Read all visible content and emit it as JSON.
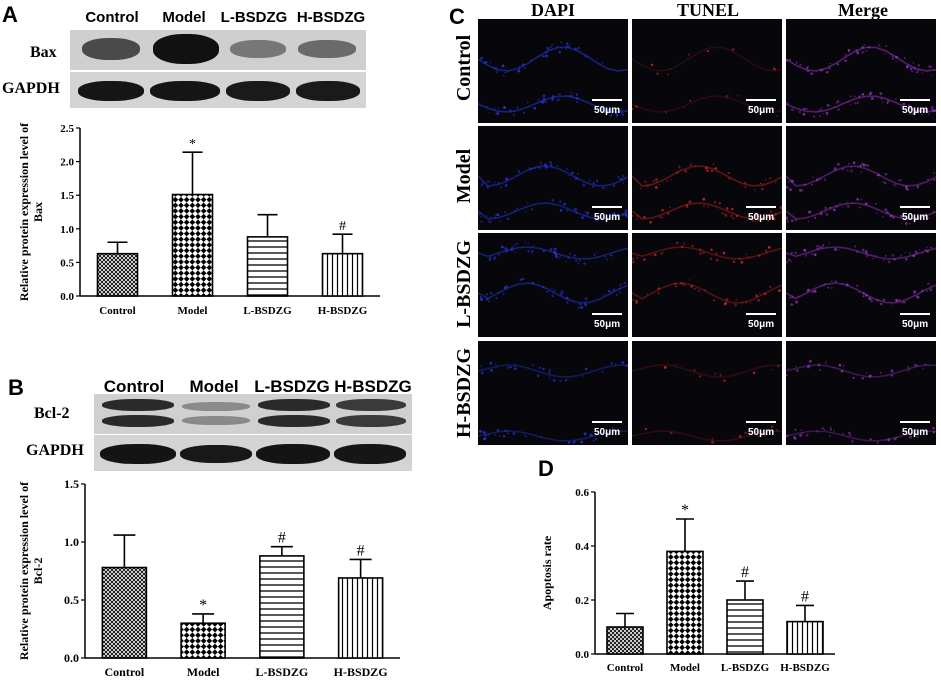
{
  "panels": {
    "A": {
      "letter": "A",
      "columns": [
        "Control",
        "Model",
        "L-BSDZG",
        "H-BSDZG"
      ],
      "rows": [
        "Bax",
        "GAPDH"
      ]
    },
    "B": {
      "letter": "B",
      "columns": [
        "Control",
        "Model",
        "L-BSDZG",
        "H-BSDZG"
      ],
      "rows": [
        "Bcl-2",
        "GAPDH"
      ]
    },
    "C": {
      "letter": "C",
      "columns": [
        "DAPI",
        "TUNEL",
        "Merge"
      ],
      "rows": [
        "Control",
        "Model",
        "L-BSDZG",
        "H-BSDZG"
      ],
      "scale_label": "50μm"
    },
    "D": {
      "letter": "D"
    }
  },
  "colors": {
    "dapi": "#2233cc",
    "tunel": "#bb2222",
    "merge": "#8a2fb0",
    "background": "#ffffff"
  },
  "chart_data": [
    {
      "id": "A",
      "type": "bar",
      "categories": [
        "Control",
        "Model",
        "L-BSDZG",
        "H-BSDZG"
      ],
      "values": [
        0.63,
        1.51,
        0.88,
        0.63
      ],
      "errors": [
        0.17,
        0.63,
        0.33,
        0.29
      ],
      "annotations": [
        "",
        "*",
        "",
        "#"
      ],
      "patterns": [
        "crosshatch",
        "checker",
        "horizontal",
        "vertical"
      ],
      "ylabel": "Relative protein expression level of Bax",
      "ylim": [
        0,
        2.5
      ],
      "yticks": [
        "0.0",
        "0.5",
        "1.0",
        "1.5",
        "2.0",
        "2.5"
      ],
      "grid": false
    },
    {
      "id": "B",
      "type": "bar",
      "categories": [
        "Control",
        "Model",
        "L-BSDZG",
        "H-BSDZG"
      ],
      "values": [
        0.78,
        0.3,
        0.88,
        0.69
      ],
      "errors": [
        0.28,
        0.08,
        0.08,
        0.16
      ],
      "annotations": [
        "",
        "*",
        "#",
        "#"
      ],
      "patterns": [
        "crosshatch",
        "checker",
        "horizontal",
        "vertical"
      ],
      "ylabel": "Relative protein expression level of Bcl-2",
      "ylim": [
        0,
        1.5
      ],
      "yticks": [
        "0.0",
        "0.5",
        "1.0",
        "1.5"
      ],
      "grid": false
    },
    {
      "id": "D",
      "type": "bar",
      "categories": [
        "Control",
        "Model",
        "L-BSDZG",
        "H-BSDZG"
      ],
      "values": [
        0.1,
        0.38,
        0.2,
        0.12
      ],
      "errors": [
        0.05,
        0.12,
        0.07,
        0.06
      ],
      "annotations": [
        "",
        "*",
        "#",
        "#"
      ],
      "patterns": [
        "crosshatch",
        "checker",
        "horizontal",
        "vertical"
      ],
      "ylabel": "Apoptosis rate",
      "ylim": [
        0,
        0.6
      ],
      "yticks": [
        "0.0",
        "0.2",
        "0.4",
        "0.6"
      ],
      "grid": false
    }
  ]
}
